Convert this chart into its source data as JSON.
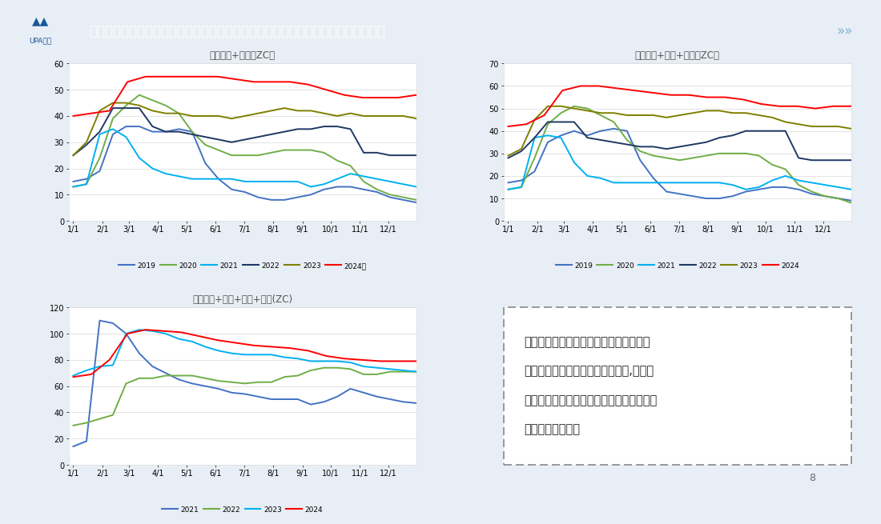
{
  "title": "库存：社会库存去库华南海运下降，因天能检修但乙烯法大量抵华南但未能统计货量",
  "bg_color": "#e8eef5",
  "header_bg": "#1a5796",
  "page_num": "8",
  "chart1": {
    "title": "库存华东+华南（ZC）",
    "ylim": [
      0,
      60
    ],
    "yticks": [
      0,
      10,
      20,
      30,
      40,
      50,
      60
    ],
    "xticks": [
      "1/1",
      "2/1",
      "3/1",
      "4/1",
      "5/1",
      "6/1",
      "7/1",
      "8/1",
      "9/1",
      "10/1",
      "11/1",
      "12/1"
    ],
    "legend": [
      "2019",
      "2020",
      "2021",
      "2022",
      "2023",
      "2024年"
    ],
    "colors": [
      "#4472c4",
      "#70ad47",
      "#00b0f0",
      "#1f3864",
      "#7f7f00",
      "#ff0000"
    ],
    "series": {
      "2019": [
        15,
        16,
        19,
        33,
        36,
        36,
        34,
        34,
        35,
        34,
        22,
        16,
        12,
        11,
        9,
        8,
        8,
        9,
        10,
        12,
        13,
        13,
        12,
        11,
        9,
        8,
        7
      ],
      "2020": [
        13,
        14,
        24,
        39,
        44,
        48,
        46,
        44,
        41,
        34,
        29,
        27,
        25,
        25,
        25,
        26,
        27,
        27,
        27,
        26,
        23,
        21,
        15,
        12,
        10,
        9,
        8
      ],
      "2021": [
        13,
        14,
        33,
        35,
        32,
        24,
        20,
        18,
        17,
        16,
        16,
        16,
        16,
        15,
        15,
        15,
        15,
        15,
        13,
        14,
        16,
        18,
        17,
        16,
        15,
        14,
        13
      ],
      "2022": [
        25,
        29,
        34,
        43,
        43,
        43,
        36,
        34,
        34,
        33,
        32,
        31,
        30,
        31,
        32,
        33,
        34,
        35,
        35,
        36,
        36,
        35,
        26,
        26,
        25,
        25,
        25
      ],
      "2023": [
        25,
        30,
        42,
        45,
        45,
        44,
        42,
        41,
        41,
        40,
        40,
        40,
        39,
        40,
        41,
        42,
        43,
        42,
        42,
        41,
        40,
        41,
        40,
        40,
        40,
        40,
        39
      ],
      "2024": [
        40,
        41,
        42,
        53,
        55,
        55,
        55,
        55,
        55,
        54,
        53,
        53,
        53,
        52,
        50,
        48,
        47,
        47,
        47,
        48
      ]
    }
  },
  "chart2": {
    "title": "库存华东+华南+西南（ZC）",
    "ylim": [
      0,
      70
    ],
    "yticks": [
      0,
      10,
      20,
      30,
      40,
      50,
      60,
      70
    ],
    "xticks": [
      "1/1",
      "2/1",
      "3/1",
      "4/1",
      "5/1",
      "6/1",
      "7/1",
      "8/1",
      "9/1",
      "10/1",
      "11/1",
      "12/1"
    ],
    "legend": [
      "2019",
      "2020",
      "2021",
      "2022",
      "2023",
      "2024"
    ],
    "colors": [
      "#4472c4",
      "#70ad47",
      "#00b0f0",
      "#1f3864",
      "#7f7f00",
      "#ff0000"
    ],
    "series": {
      "2019": [
        17,
        18,
        22,
        35,
        38,
        40,
        38,
        40,
        41,
        40,
        27,
        19,
        13,
        12,
        11,
        10,
        10,
        11,
        13,
        14,
        15,
        15,
        14,
        12,
        11,
        10,
        9
      ],
      "2020": [
        14,
        15,
        28,
        43,
        48,
        51,
        50,
        47,
        44,
        36,
        31,
        29,
        28,
        27,
        28,
        29,
        30,
        30,
        30,
        29,
        25,
        23,
        16,
        13,
        11,
        10,
        8
      ],
      "2021": [
        14,
        15,
        37,
        38,
        37,
        26,
        20,
        19,
        17,
        17,
        17,
        17,
        17,
        17,
        17,
        17,
        17,
        16,
        14,
        15,
        18,
        20,
        18,
        17,
        16,
        15,
        14
      ],
      "2022": [
        28,
        31,
        37,
        44,
        44,
        44,
        37,
        36,
        35,
        34,
        33,
        33,
        32,
        33,
        34,
        35,
        37,
        38,
        40,
        40,
        40,
        40,
        28,
        27,
        27,
        27,
        27
      ],
      "2023": [
        29,
        32,
        45,
        51,
        51,
        50,
        49,
        48,
        48,
        47,
        47,
        47,
        46,
        47,
        48,
        49,
        49,
        48,
        48,
        47,
        46,
        44,
        43,
        42,
        42,
        42,
        41
      ],
      "2024": [
        42,
        43,
        47,
        58,
        60,
        60,
        59,
        58,
        57,
        56,
        56,
        55,
        55,
        54,
        52,
        51,
        51,
        50,
        51,
        51
      ]
    }
  },
  "chart3": {
    "title": "库存华东+华南+西南+上游(ZC)",
    "ylim": [
      0,
      120
    ],
    "yticks": [
      0,
      20,
      40,
      60,
      80,
      100,
      120
    ],
    "xticks": [
      "1/1",
      "2/1",
      "3/1",
      "4/1",
      "5/1",
      "6/1",
      "7/1",
      "8/1",
      "9/1",
      "10/1",
      "11/1",
      "12/1"
    ],
    "legend": [
      "2021",
      "2022",
      "2023",
      "2024"
    ],
    "colors": [
      "#4472c4",
      "#70ad47",
      "#00b0f0",
      "#ff0000"
    ],
    "series": {
      "2021": [
        14,
        18,
        110,
        108,
        100,
        85,
        75,
        70,
        65,
        62,
        60,
        58,
        55,
        54,
        52,
        50,
        50,
        50,
        46,
        48,
        52,
        58,
        55,
        52,
        50,
        48,
        47
      ],
      "2022": [
        30,
        32,
        35,
        38,
        62,
        66,
        66,
        68,
        68,
        68,
        66,
        64,
        63,
        62,
        63,
        63,
        67,
        68,
        72,
        74,
        74,
        73,
        69,
        69,
        71,
        71,
        71
      ],
      "2023": [
        68,
        72,
        75,
        76,
        100,
        103,
        102,
        100,
        96,
        94,
        90,
        87,
        85,
        84,
        84,
        84,
        82,
        81,
        79,
        79,
        79,
        78,
        75,
        74,
        73,
        72,
        71
      ],
      "2024": [
        67,
        69,
        80,
        100,
        103,
        102,
        101,
        98,
        95,
        93,
        91,
        90,
        89,
        87,
        83,
        81,
        80,
        79,
        79,
        79
      ]
    }
  },
  "text_box": {
    "lines": [
      "随着内蒙大装置检修的结束和大量乙烯法",
      "到货，华南库存去库速度明显放缓,本周因",
      "天业天能检修不幅去库。但实际海运增加，",
      "未能纳入数据统计"
    ]
  }
}
